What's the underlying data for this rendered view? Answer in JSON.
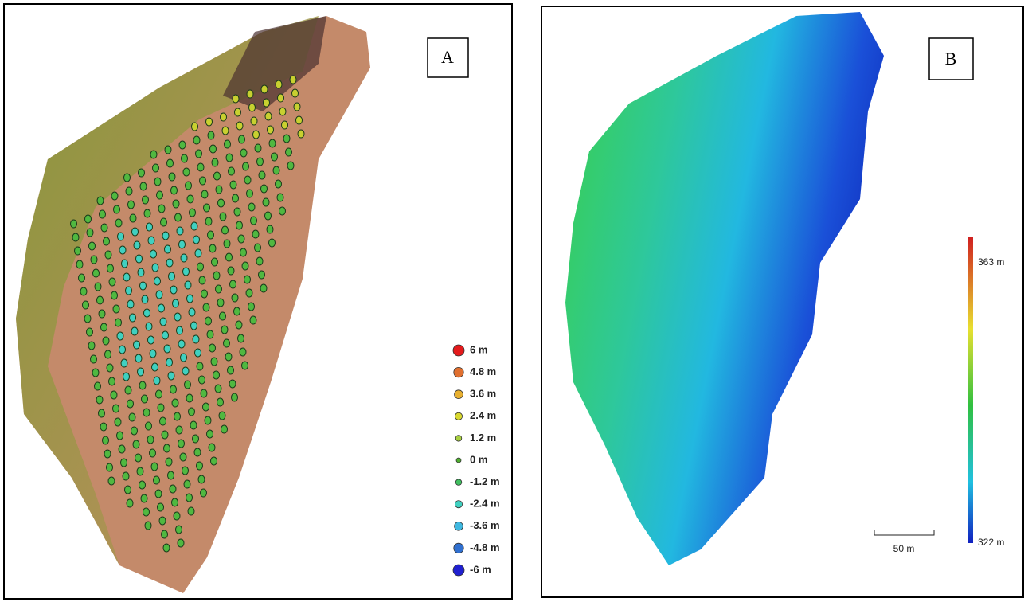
{
  "panels": [
    {
      "label": "A",
      "legend": [
        {
          "label": "6 m",
          "color": "#e41a1c"
        },
        {
          "label": "4.8 m",
          "color": "#e07030"
        },
        {
          "label": "3.6 m",
          "color": "#e8b030"
        },
        {
          "label": "2.4 m",
          "color": "#d8d830"
        },
        {
          "label": "1.2 m",
          "color": "#a8d040"
        },
        {
          "label": "0 m",
          "color": "#50b030"
        },
        {
          "label": "-1.2 m",
          "color": "#40c060"
        },
        {
          "label": "-2.4 m",
          "color": "#40d0c0"
        },
        {
          "label": "-3.6 m",
          "color": "#40b8e0"
        },
        {
          "label": "-4.8 m",
          "color": "#3070d0"
        },
        {
          "label": "-6 m",
          "color": "#2020d0"
        }
      ]
    },
    {
      "label": "B",
      "colorbar": {
        "max": "363 m",
        "min": "322 m"
      },
      "scale_bar": "50 m"
    }
  ]
}
